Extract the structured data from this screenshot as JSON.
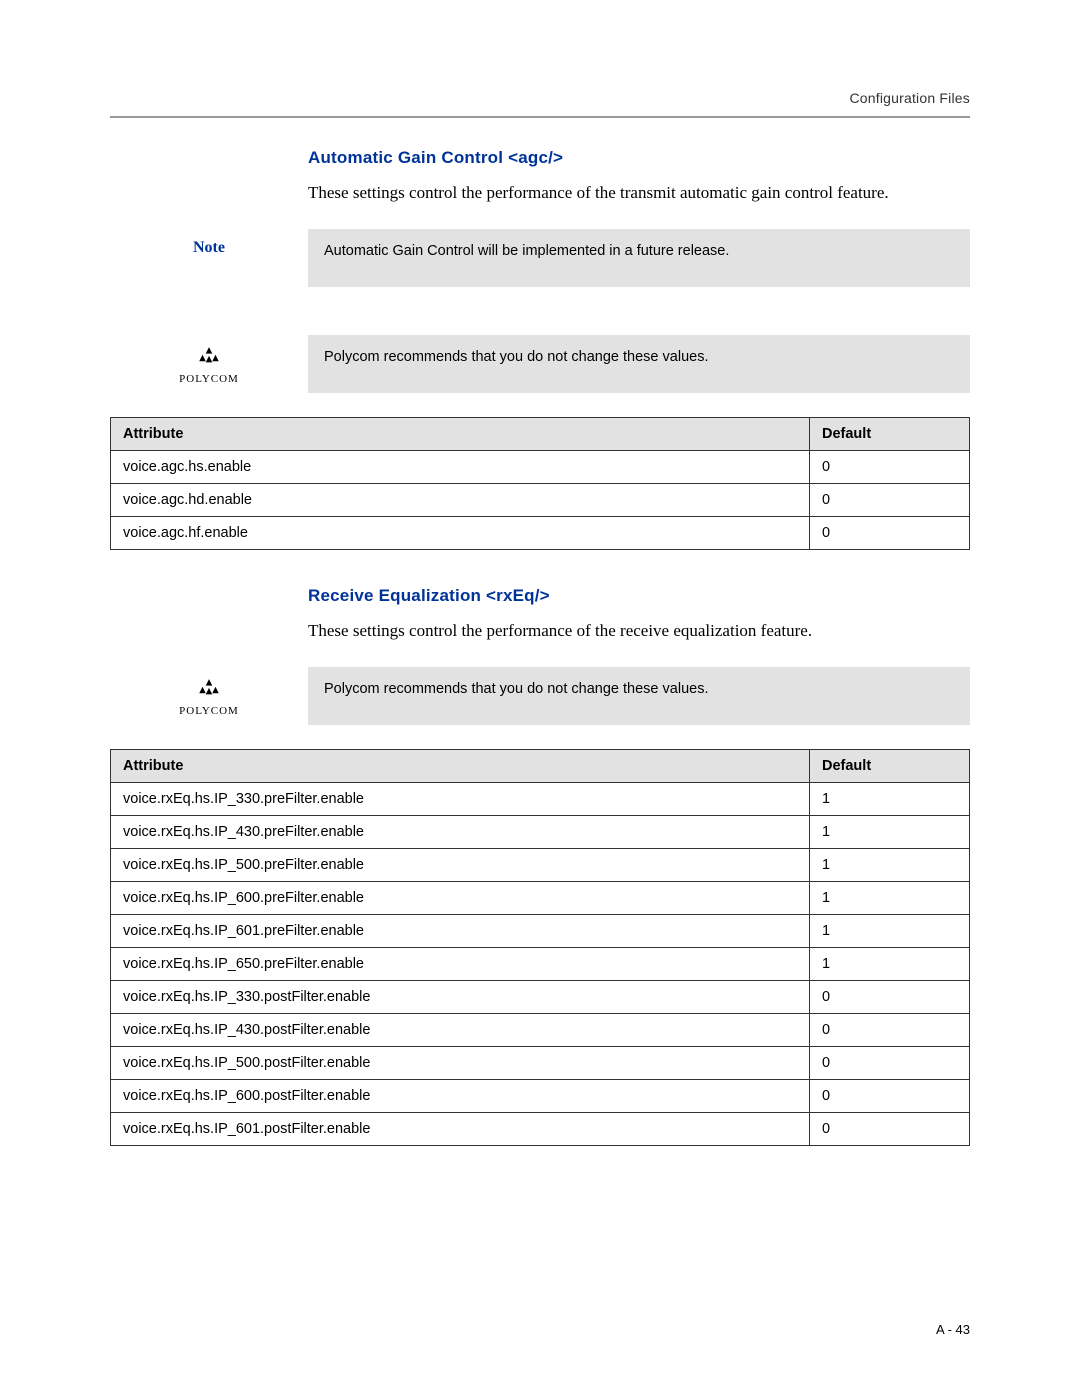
{
  "header": {
    "right_text": "Configuration Files"
  },
  "section1": {
    "heading": "Automatic Gain Control <agc/>",
    "body": "These settings control the performance of the transmit automatic gain control feature.",
    "note_label": "Note",
    "note_text": "Automatic Gain Control will be implemented in a future release.",
    "polycom_label": "POLYCOM",
    "polycom_text": "Polycom recommends that you do not change these values.",
    "table": {
      "columns": [
        "Attribute",
        "Default"
      ],
      "rows": [
        [
          "voice.agc.hs.enable",
          "0"
        ],
        [
          "voice.agc.hd.enable",
          "0"
        ],
        [
          "voice.agc.hf.enable",
          "0"
        ]
      ]
    }
  },
  "section2": {
    "heading": "Receive Equalization <rxEq/>",
    "body": "These settings control the performance of the receive equalization feature.",
    "polycom_label": "POLYCOM",
    "polycom_text": "Polycom recommends that you do not change these values.",
    "table": {
      "columns": [
        "Attribute",
        "Default"
      ],
      "rows": [
        [
          "voice.rxEq.hs.IP_330.preFilter.enable",
          "1"
        ],
        [
          "voice.rxEq.hs.IP_430.preFilter.enable",
          "1"
        ],
        [
          "voice.rxEq.hs.IP_500.preFilter.enable",
          "1"
        ],
        [
          "voice.rxEq.hs.IP_600.preFilter.enable",
          "1"
        ],
        [
          "voice.rxEq.hs.IP_601.preFilter.enable",
          "1"
        ],
        [
          "voice.rxEq.hs.IP_650.preFilter.enable",
          "1"
        ],
        [
          "voice.rxEq.hs.IP_330.postFilter.enable",
          "0"
        ],
        [
          "voice.rxEq.hs.IP_430.postFilter.enable",
          "0"
        ],
        [
          "voice.rxEq.hs.IP_500.postFilter.enable",
          "0"
        ],
        [
          "voice.rxEq.hs.IP_600.postFilter.enable",
          "0"
        ],
        [
          "voice.rxEq.hs.IP_601.postFilter.enable",
          "0"
        ]
      ]
    }
  },
  "footer": {
    "page_number": "A - 43"
  },
  "colors": {
    "heading_blue": "#003399",
    "callout_bg": "#e2e2e2",
    "border_gray": "#999999",
    "table_border": "#333333"
  }
}
